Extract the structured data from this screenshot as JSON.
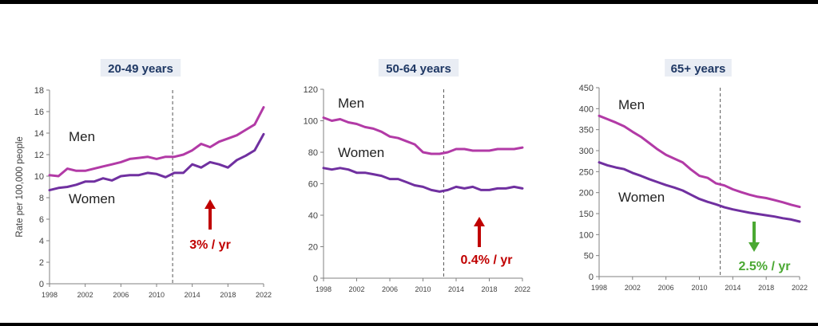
{
  "chart_data": [
    {
      "type": "line",
      "title": "20-49 years",
      "xlabel": "",
      "ylabel": "Rate per 100,000 people",
      "xlim": [
        1998,
        2022
      ],
      "ylim": [
        0,
        18
      ],
      "xticks": [
        1998,
        2002,
        2006,
        2010,
        2014,
        2018,
        2022
      ],
      "yticks": [
        0,
        2,
        4,
        6,
        8,
        10,
        12,
        14,
        16,
        18
      ],
      "divider_year": 2011.8,
      "series": [
        {
          "name": "Men",
          "color": "#b23aa6",
          "x": [
            1998,
            1999,
            2000,
            2001,
            2002,
            2003,
            2004,
            2005,
            2006,
            2007,
            2008,
            2009,
            2010,
            2011,
            2012,
            2013,
            2014,
            2015,
            2016,
            2017,
            2018,
            2019,
            2020,
            2021,
            2022
          ],
          "values": [
            10.1,
            10.0,
            10.7,
            10.5,
            10.5,
            10.7,
            10.9,
            11.1,
            11.3,
            11.6,
            11.7,
            11.8,
            11.6,
            11.8,
            11.8,
            12.0,
            12.4,
            13.0,
            12.7,
            13.2,
            13.5,
            13.8,
            14.3,
            14.8,
            16.4
          ]
        },
        {
          "name": "Women",
          "color": "#7030a0",
          "x": [
            1998,
            1999,
            2000,
            2001,
            2002,
            2003,
            2004,
            2005,
            2006,
            2007,
            2008,
            2009,
            2010,
            2011,
            2012,
            2013,
            2014,
            2015,
            2016,
            2017,
            2018,
            2019,
            2020,
            2021,
            2022
          ],
          "values": [
            8.7,
            8.9,
            9.0,
            9.2,
            9.5,
            9.5,
            9.8,
            9.6,
            10.0,
            10.1,
            10.1,
            10.3,
            10.2,
            9.9,
            10.3,
            10.3,
            11.1,
            10.8,
            11.3,
            11.1,
            10.8,
            11.5,
            11.9,
            12.4,
            13.9
          ]
        }
      ],
      "trend": {
        "text": "3% / yr",
        "direction": "up",
        "color": "#c00000"
      }
    },
    {
      "type": "line",
      "title": "50-64 years",
      "xlabel": "",
      "ylabel": "",
      "xlim": [
        1998,
        2022
      ],
      "ylim": [
        0,
        120
      ],
      "xticks": [
        1998,
        2002,
        2006,
        2010,
        2014,
        2018,
        2022
      ],
      "yticks": [
        0,
        20,
        40,
        60,
        80,
        100,
        120
      ],
      "divider_year": 2012.5,
      "series": [
        {
          "name": "Men",
          "color": "#b23aa6",
          "x": [
            1998,
            1999,
            2000,
            2001,
            2002,
            2003,
            2004,
            2005,
            2006,
            2007,
            2008,
            2009,
            2010,
            2011,
            2012,
            2013,
            2014,
            2015,
            2016,
            2017,
            2018,
            2019,
            2020,
            2021,
            2022
          ],
          "values": [
            102,
            100,
            101,
            99,
            98,
            96,
            95,
            93,
            90,
            89,
            87,
            85,
            80,
            79,
            79,
            80,
            82,
            82,
            81,
            81,
            81,
            82,
            82,
            82,
            83
          ]
        },
        {
          "name": "Women",
          "color": "#7030a0",
          "x": [
            1998,
            1999,
            2000,
            2001,
            2002,
            2003,
            2004,
            2005,
            2006,
            2007,
            2008,
            2009,
            2010,
            2011,
            2012,
            2013,
            2014,
            2015,
            2016,
            2017,
            2018,
            2019,
            2020,
            2021,
            2022
          ],
          "values": [
            70,
            69,
            70,
            69,
            67,
            67,
            66,
            65,
            63,
            63,
            61,
            59,
            58,
            56,
            55,
            56,
            58,
            57,
            58,
            56,
            56,
            57,
            57,
            58,
            57
          ]
        }
      ],
      "trend": {
        "text": "0.4% / yr",
        "direction": "up",
        "color": "#c00000"
      }
    },
    {
      "type": "line",
      "title": "65+ years",
      "xlabel": "",
      "ylabel": "",
      "xlim": [
        1998,
        2022
      ],
      "ylim": [
        0,
        450
      ],
      "xticks": [
        1998,
        2002,
        2006,
        2010,
        2014,
        2018,
        2022
      ],
      "yticks": [
        0,
        50,
        100,
        150,
        200,
        250,
        300,
        350,
        400,
        450
      ],
      "divider_year": 2012.5,
      "series": [
        {
          "name": "Men",
          "color": "#b23aa6",
          "x": [
            1998,
            1999,
            2000,
            2001,
            2002,
            2003,
            2004,
            2005,
            2006,
            2007,
            2008,
            2009,
            2010,
            2011,
            2012,
            2013,
            2014,
            2015,
            2016,
            2017,
            2018,
            2019,
            2020,
            2021,
            2022
          ],
          "values": [
            383,
            375,
            367,
            358,
            345,
            333,
            318,
            303,
            290,
            281,
            272,
            255,
            240,
            235,
            222,
            217,
            208,
            201,
            195,
            190,
            187,
            182,
            177,
            171,
            166
          ]
        },
        {
          "name": "Women",
          "color": "#7030a0",
          "x": [
            1998,
            1999,
            2000,
            2001,
            2002,
            2003,
            2004,
            2005,
            2006,
            2007,
            2008,
            2009,
            2010,
            2011,
            2012,
            2013,
            2014,
            2015,
            2016,
            2017,
            2018,
            2019,
            2020,
            2021,
            2022
          ],
          "values": [
            272,
            265,
            260,
            256,
            247,
            240,
            232,
            225,
            218,
            212,
            205,
            195,
            185,
            178,
            172,
            165,
            160,
            156,
            152,
            149,
            146,
            143,
            139,
            136,
            131
          ]
        }
      ],
      "trend": {
        "text": "2.5% / yr",
        "direction": "down",
        "color": "#4aa832"
      }
    }
  ]
}
